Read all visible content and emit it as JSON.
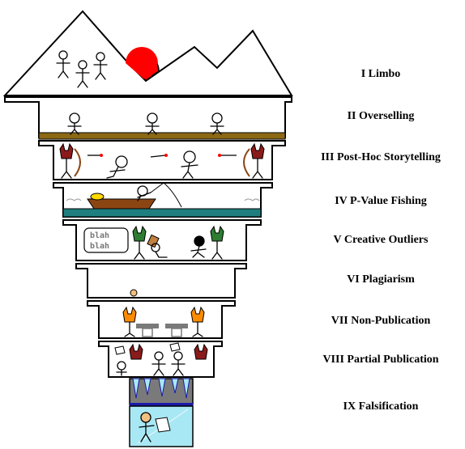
{
  "circles": [
    {
      "label": "I Limbo"
    },
    {
      "label": "II Overselling"
    },
    {
      "label": "III Post-Hoc Storytelling"
    },
    {
      "label": "IV P-Value Fishing"
    },
    {
      "label": "V Creative Outliers"
    },
    {
      "label": "VI Plagiarism"
    },
    {
      "label": "VII Non-Publication"
    },
    {
      "label": "VIII Partial Publication"
    },
    {
      "label": "IX Falsification"
    }
  ],
  "speech_bubble": {
    "line1": "blah",
    "line2": "blah"
  },
  "colors": {
    "sun": "#ff0000",
    "ground": "#8b6914",
    "water": "#1f7f7f",
    "boat": "#8b4513",
    "ice": "#a8e8f4",
    "ice_border": "#1a1aa8",
    "stone": "#7a7a7a",
    "demon_red": "#8b1a1a",
    "demon_green": "#2e7d32",
    "fire": "#ff8c00"
  },
  "icons": [
    "mountain-icon",
    "sun-icon",
    "arrow-icon",
    "bow-icon",
    "boat-icon",
    "fishing-rod-icon",
    "speech-bubble-icon",
    "paper-icon",
    "coffin-icon",
    "icicle-icon",
    "demon-icon"
  ]
}
